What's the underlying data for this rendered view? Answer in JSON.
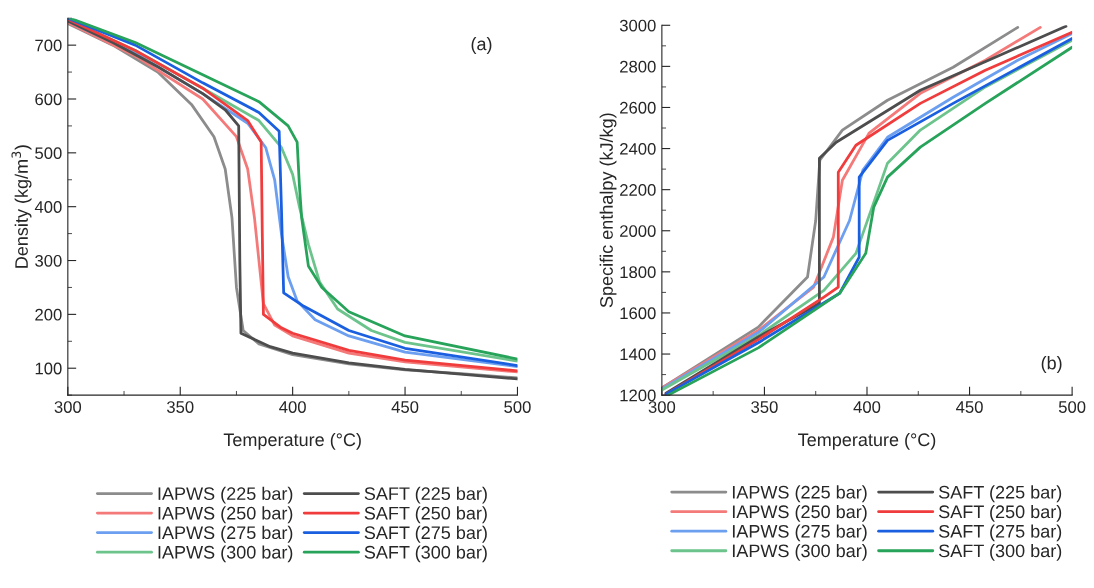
{
  "chart_data": [
    {
      "type": "line",
      "xlabel": "Temperature (°C)",
      "ylabel": "Density (kg/m$^{3}$)",
      "annotations": [
        "(a)"
      ],
      "xlim": [
        300,
        500
      ],
      "ylim": [
        50,
        750
      ],
      "xticks": [
        300,
        350,
        400,
        450,
        500
      ],
      "yticks": [
        100,
        200,
        300,
        400,
        500,
        600,
        700
      ],
      "grid": false,
      "legend": "bottom",
      "series": [
        {
          "name": "IAPWS (225 bar)",
          "color": "#8c8c8c",
          "x": [
            300,
            320,
            340,
            355,
            365,
            370,
            373,
            375,
            378,
            385,
            400,
            425,
            450,
            475,
            500
          ],
          "values": [
            740,
            700,
            650,
            590,
            530,
            470,
            380,
            250,
            170,
            145,
            125,
            108,
            97,
            90,
            82
          ]
        },
        {
          "name": "IAPWS (250 bar)",
          "color": "#f47a7a",
          "x": [
            300,
            330,
            360,
            375,
            380,
            383,
            385,
            387,
            392,
            400,
            425,
            450,
            500
          ],
          "values": [
            742,
            680,
            600,
            530,
            470,
            380,
            300,
            220,
            180,
            160,
            128,
            112,
            93
          ]
        },
        {
          "name": "IAPWS (275 bar)",
          "color": "#6c9ff0",
          "x": [
            300,
            330,
            360,
            380,
            388,
            392,
            395,
            398,
            402,
            410,
            425,
            450,
            500
          ],
          "values": [
            745,
            685,
            610,
            555,
            510,
            450,
            350,
            270,
            225,
            190,
            160,
            130,
            103
          ]
        },
        {
          "name": "IAPWS (300 bar)",
          "color": "#6cc48c",
          "x": [
            300,
            330,
            360,
            385,
            395,
            400,
            403,
            407,
            412,
            420,
            435,
            450,
            500
          ],
          "values": [
            748,
            690,
            620,
            560,
            510,
            460,
            400,
            330,
            260,
            210,
            170,
            148,
            113
          ]
        },
        {
          "name": "SAFT (225 bar)",
          "color": "#4d4d4d",
          "x": [
            300,
            320,
            340,
            360,
            370,
            376,
            376.5,
            377,
            390,
            400,
            425,
            450,
            500
          ],
          "values": [
            745,
            705,
            660,
            610,
            580,
            550,
            300,
            165,
            140,
            128,
            110,
            98,
            80
          ]
        },
        {
          "name": "SAFT (250 bar)",
          "color": "#f03c3c",
          "x": [
            300,
            330,
            360,
            380,
            386,
            386.5,
            387,
            395,
            400,
            425,
            450,
            500
          ],
          "values": [
            748,
            690,
            620,
            560,
            520,
            350,
            200,
            175,
            165,
            133,
            115,
            95
          ]
        },
        {
          "name": "SAFT (275 bar)",
          "color": "#1a5fe0",
          "x": [
            300,
            330,
            360,
            385,
            394,
            395,
            396,
            405,
            425,
            450,
            500
          ],
          "values": [
            750,
            700,
            630,
            575,
            540,
            400,
            240,
            215,
            170,
            137,
            105
          ]
        },
        {
          "name": "SAFT (300 bar)",
          "color": "#27a35a",
          "x": [
            301,
            330,
            360,
            385,
            398,
            402,
            403,
            404,
            407,
            413,
            425,
            450,
            500
          ],
          "values": [
            750,
            705,
            645,
            595,
            550,
            520,
            440,
            380,
            290,
            250,
            205,
            160,
            117
          ]
        }
      ]
    },
    {
      "type": "line",
      "xlabel": "Temperature (°C)",
      "ylabel": "Specific enthalpy (kJ/kg)",
      "annotations": [
        "(b)"
      ],
      "xlim": [
        300,
        500
      ],
      "ylim": [
        1200,
        3000
      ],
      "xticks": [
        300,
        350,
        400,
        450,
        500
      ],
      "yticks": [
        1200,
        1400,
        1600,
        1800,
        2000,
        2200,
        2400,
        2600,
        2800,
        3000
      ],
      "grid": false,
      "legend": "bottom",
      "series": [
        {
          "name": "IAPWS (225 bar)",
          "color": "#8c8c8c",
          "x": [
            300,
            347,
            371,
            375,
            377,
            388,
            410,
            442,
            473.5
          ],
          "values": [
            1235,
            1531,
            1775,
            2050,
            2343,
            2490,
            2635,
            2796,
            2990
          ]
        },
        {
          "name": "IAPWS (250 bar)",
          "color": "#f47a7a",
          "x": [
            300,
            347,
            374,
            383.6,
            388,
            401,
            426,
            457.7,
            484.5
          ],
          "values": [
            1235,
            1515,
            1726,
            1969,
            2246,
            2475,
            2669,
            2830,
            2990
          ]
        },
        {
          "name": "IAPWS (275 bar)",
          "color": "#6c9ff0",
          "x": [
            300,
            347,
            379,
            391.5,
            398,
            410,
            442,
            473.5,
            500
          ],
          "values": [
            1230,
            1505,
            1775,
            2050,
            2295,
            2455,
            2650,
            2830,
            2960
          ]
        },
        {
          "name": "IAPWS (300 bar)",
          "color": "#6cc48c",
          "x": [
            300,
            347,
            379,
            394.6,
            402.5,
            410,
            426,
            457.7,
            500
          ],
          "values": [
            1225,
            1490,
            1710,
            1890,
            2115,
            2329,
            2490,
            2700,
            2927
          ]
        },
        {
          "name": "SAFT (225 bar)",
          "color": "#4d4d4d",
          "x": [
            302,
            347,
            371,
            376.8,
            376.8,
            385,
            426,
            497
          ],
          "values": [
            1210,
            1483,
            1614,
            1648,
            2353,
            2431,
            2684,
            2995
          ]
        },
        {
          "name": "SAFT (250 bar)",
          "color": "#f03c3c",
          "x": [
            302,
            347,
            379,
            386,
            386,
            394.6,
            426,
            457.7,
            500
          ],
          "values": [
            1205,
            1470,
            1677,
            1726,
            2285,
            2416,
            2620,
            2781,
            2966
          ]
        },
        {
          "name": "SAFT (275 bar)",
          "color": "#1a5fe0",
          "x": [
            302,
            347,
            386.7,
            396.2,
            396.2,
            410,
            442,
            500
          ],
          "values": [
            1205,
            1455,
            1696,
            1872,
            2261,
            2440,
            2620,
            2936
          ]
        },
        {
          "name": "SAFT (300 bar)",
          "color": "#27a35a",
          "x": [
            303,
            347,
            386.7,
            399.4,
            403.3,
            410,
            426,
            457.7,
            500
          ],
          "values": [
            1200,
            1430,
            1696,
            1890,
            2115,
            2261,
            2407,
            2620,
            2893
          ]
        }
      ]
    }
  ]
}
